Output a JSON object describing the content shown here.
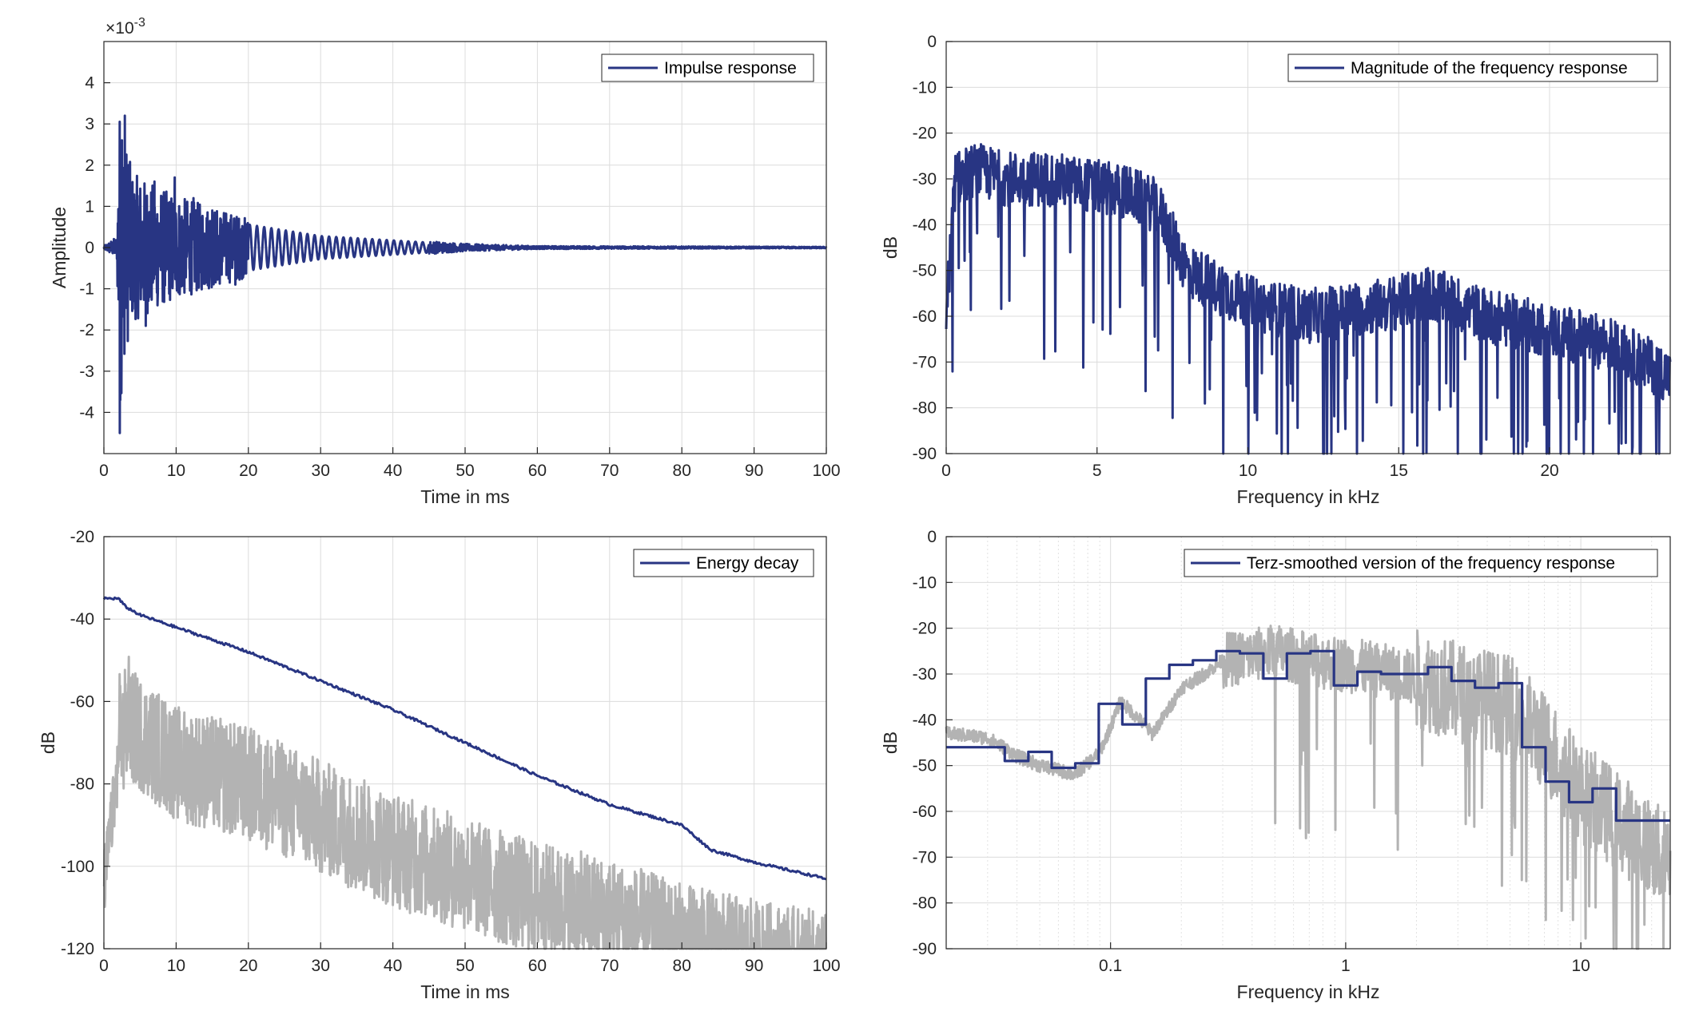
{
  "colors": {
    "series": "#283583",
    "gray": "#b3b3b3",
    "axis": "#262626",
    "grid": "#dcdcdc"
  },
  "chart_data": [
    {
      "id": "impulse",
      "type": "line",
      "xlabel": "Time in ms",
      "ylabel": "Amplitude",
      "exponent": "×10",
      "exponent_power": "-3",
      "xlim": [
        0,
        100
      ],
      "ylim": [
        -5,
        5
      ],
      "xticks": [
        0,
        10,
        20,
        30,
        40,
        50,
        60,
        70,
        80,
        90,
        100
      ],
      "yticks": [
        -4,
        -3,
        -2,
        -1,
        0,
        1,
        2,
        3,
        4
      ],
      "grid": true,
      "legend_position": "top-right",
      "series": [
        {
          "name": "Impulse response",
          "color": "#283583",
          "envelope": [
            [
              0,
              0.05
            ],
            [
              1.8,
              0.3
            ],
            [
              2.0,
              2.6
            ],
            [
              2.3,
              4.5
            ],
            [
              2.6,
              3.2
            ],
            [
              4,
              2.0
            ],
            [
              10,
              1.4
            ],
            [
              20,
              0.8
            ],
            [
              30,
              0.4
            ],
            [
              40,
              0.25
            ],
            [
              50,
              0.1
            ],
            [
              60,
              0.04
            ],
            [
              100,
              0.02
            ]
          ],
          "peaks": [
            [
              2.2,
              -4.5
            ],
            [
              2.5,
              2.6
            ],
            [
              2.9,
              3.2
            ],
            [
              3.4,
              2.0
            ],
            [
              4.3,
              -1.3
            ],
            [
              5.0,
              1.0
            ],
            [
              5.8,
              -1.9
            ],
            [
              7.0,
              1.6
            ],
            [
              9.8,
              1.7
            ],
            [
              12.4,
              1.2
            ],
            [
              15.0,
              0.9
            ],
            [
              18.0,
              0.7
            ],
            [
              18.2,
              -0.9
            ]
          ]
        }
      ]
    },
    {
      "id": "magnitude",
      "type": "line",
      "xlabel": "Frequency in kHz",
      "ylabel": "dB",
      "xlim": [
        0,
        24
      ],
      "ylim": [
        -90,
        0
      ],
      "xticks": [
        0,
        5,
        10,
        15,
        20
      ],
      "yticks": [
        0,
        -10,
        -20,
        -30,
        -40,
        -50,
        -60,
        -70,
        -80,
        -90
      ],
      "grid": true,
      "legend_position": "top-right",
      "series": [
        {
          "name": "Magnitude of the frequency response",
          "color": "#283583",
          "trend": [
            [
              0,
              -60
            ],
            [
              0.3,
              -30
            ],
            [
              1,
              -28
            ],
            [
              2,
              -30
            ],
            [
              3.5,
              -30
            ],
            [
              6,
              -33
            ],
            [
              7,
              -36
            ],
            [
              8,
              -50
            ],
            [
              10,
              -57
            ],
            [
              12,
              -60
            ],
            [
              15,
              -57
            ],
            [
              16,
              -55
            ],
            [
              18,
              -60
            ],
            [
              20,
              -63
            ],
            [
              22,
              -66
            ],
            [
              24,
              -73
            ]
          ]
        }
      ]
    },
    {
      "id": "decay",
      "type": "line",
      "xlabel": "Time in ms",
      "ylabel": "dB",
      "xlim": [
        0,
        100
      ],
      "ylim": [
        -120,
        -20
      ],
      "xticks": [
        0,
        10,
        20,
        30,
        40,
        50,
        60,
        70,
        80,
        90,
        100
      ],
      "yticks": [
        -20,
        -40,
        -60,
        -80,
        -100,
        -120
      ],
      "grid": true,
      "legend_position": "top-right",
      "series": [
        {
          "name": "Energy decay",
          "color": "#283583",
          "x": [
            0,
            2,
            3,
            5,
            10,
            20,
            30,
            40,
            50,
            60,
            70,
            80,
            84,
            90,
            100
          ],
          "y": [
            -35,
            -35,
            -37,
            -39,
            -42,
            -48,
            -55,
            -62,
            -70,
            -78,
            -85,
            -90,
            -96,
            -99,
            -103
          ]
        },
        {
          "name": "",
          "color": "#b3b3b3",
          "trend": [
            [
              0,
              -105
            ],
            [
              2,
              -75
            ],
            [
              3,
              -65
            ],
            [
              10,
              -75
            ],
            [
              20,
              -80
            ],
            [
              30,
              -88
            ],
            [
              40,
              -96
            ],
            [
              50,
              -102
            ],
            [
              60,
              -108
            ],
            [
              70,
              -112
            ],
            [
              80,
              -118
            ],
            [
              90,
              -122
            ],
            [
              100,
              -125
            ]
          ]
        }
      ]
    },
    {
      "id": "terz",
      "type": "line",
      "xscale": "log",
      "xlabel": "Frequency in kHz",
      "ylabel": "dB",
      "xlim": [
        0.02,
        24
      ],
      "ylim": [
        -90,
        0
      ],
      "xticks": [
        0.1,
        1,
        10
      ],
      "xticklabels": [
        "0.1",
        "1",
        "10"
      ],
      "yticks": [
        0,
        -10,
        -20,
        -30,
        -40,
        -50,
        -60,
        -70,
        -80,
        -90
      ],
      "grid": true,
      "legend_position": "top-right",
      "series": [
        {
          "name": "Terz-smoothed version of the frequency response",
          "color": "#283583",
          "step_edges": [
            0.02,
            0.0355,
            0.0447,
            0.0562,
            0.0708,
            0.0891,
            0.1122,
            0.1413,
            0.1778,
            0.2239,
            0.2818,
            0.3548,
            0.4467,
            0.5623,
            0.7079,
            0.8913,
            1.122,
            1.413,
            1.778,
            2.239,
            2.818,
            3.548,
            4.467,
            5.623,
            7.079,
            8.913,
            11.22,
            14.13,
            17.78,
            24
          ],
          "step_values": [
            -46,
            -49,
            -47,
            -50.5,
            -49.5,
            -36.5,
            -41,
            -31,
            -28,
            -27,
            -25,
            -25.5,
            -31,
            -25.5,
            -25,
            -32.5,
            -29.5,
            -30,
            -30,
            -28.5,
            -31.5,
            -33,
            -32,
            -46,
            -53.5,
            -58,
            -55,
            -62,
            -62
          ]
        },
        {
          "name": "",
          "color": "#b3b3b3",
          "trend": [
            [
              0.02,
              -43
            ],
            [
              0.03,
              -44
            ],
            [
              0.04,
              -48
            ],
            [
              0.05,
              -50
            ],
            [
              0.07,
              -52
            ],
            [
              0.09,
              -47
            ],
            [
              0.11,
              -36
            ],
            [
              0.15,
              -43
            ],
            [
              0.2,
              -33
            ],
            [
              0.3,
              -27
            ],
            [
              0.5,
              -25
            ],
            [
              0.7,
              -27
            ],
            [
              1,
              -28
            ],
            [
              2,
              -31
            ],
            [
              3,
              -34
            ],
            [
              5,
              -37
            ],
            [
              7,
              -45
            ],
            [
              10,
              -56
            ],
            [
              15,
              -63
            ],
            [
              20,
              -68
            ],
            [
              24,
              -72
            ]
          ]
        }
      ]
    }
  ]
}
